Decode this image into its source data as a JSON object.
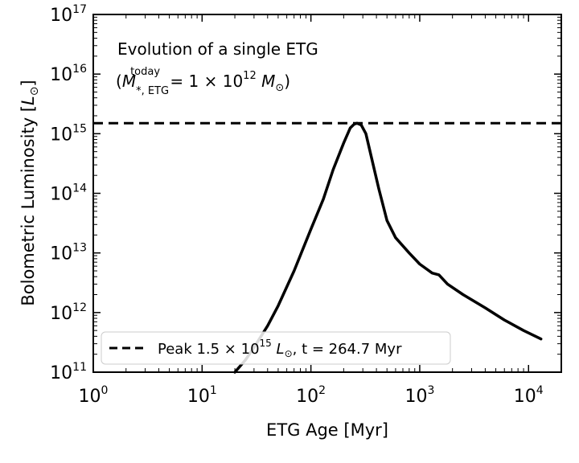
{
  "chart_data": {
    "type": "line",
    "title": "",
    "xlabel": "ETG Age [Myr]",
    "ylabel": "Bolometric Luminosity [L⊙]",
    "xscale": "log",
    "yscale": "log",
    "xlim": [
      1,
      20000
    ],
    "ylim": [
      100000000000.0,
      1e+17
    ],
    "x_ticks": [
      1,
      10,
      100,
      1000,
      10000
    ],
    "x_tick_labels": [
      "10^0",
      "10^1",
      "10^2",
      "10^3",
      "10^4"
    ],
    "y_ticks": [
      100000000000.0,
      1000000000000.0,
      10000000000000.0,
      100000000000000.0,
      1000000000000000.0,
      1e+16,
      1e+17
    ],
    "y_tick_labels": [
      "10^11",
      "10^12",
      "10^13",
      "10^14",
      "10^15",
      "10^16",
      "10^17"
    ],
    "annotation_line1": "Evolution of a single ETG",
    "annotation_line2": "(M*,ETG^today = 1 × 10^12 M⊙)",
    "legend_placement": "lower-center",
    "legend_label": "Peak 1.5 × 10^15 L⊙, t = 264.7 Myr",
    "grid": false,
    "series": [
      {
        "style": "solid",
        "color": "#000000",
        "x": [
          20,
          25,
          30,
          40,
          50,
          70,
          100,
          130,
          160,
          200,
          230,
          250,
          265,
          290,
          320,
          360,
          420,
          500,
          600,
          800,
          1000,
          1300,
          1500,
          1800,
          2500,
          4000,
          6000,
          9000,
          13000
        ],
        "y": [
          100000000000.0,
          160000000000.0,
          260000000000.0,
          600000000000.0,
          1300000000000.0,
          5000000000000.0,
          25000000000000.0,
          80000000000000.0,
          250000000000000.0,
          700000000000000.0,
          1250000000000000.0,
          1450000000000000.0,
          1500000000000000.0,
          1400000000000000.0,
          1000000000000000.0,
          400000000000000.0,
          120000000000000.0,
          35000000000000.0,
          18000000000000.0,
          10000000000000.0,
          6500000000000.0,
          4600000000000.0,
          4300000000000.0,
          3000000000000.0,
          2000000000000.0,
          1200000000000.0,
          750000000000.0,
          500000000000.0,
          360000000000.0
        ]
      },
      {
        "style": "dashed",
        "color": "#000000",
        "y_constant": 1500000000000000.0
      }
    ]
  }
}
